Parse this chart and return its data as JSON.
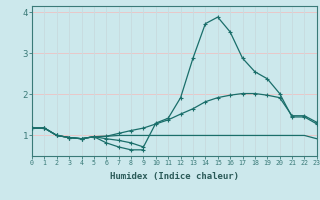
{
  "xlabel": "Humidex (Indice chaleur)",
  "bg_color": "#cce8ec",
  "grid_color_h": "#e8c8c8",
  "grid_color_v": "#c8dce0",
  "line_color": "#1a6e6a",
  "xmin": 0,
  "xmax": 23,
  "ymin": 0.5,
  "ymax": 4.15,
  "yticks": [
    1,
    2,
    3,
    4
  ],
  "xticks": [
    0,
    1,
    2,
    3,
    4,
    5,
    6,
    7,
    8,
    9,
    10,
    11,
    12,
    13,
    14,
    15,
    16,
    17,
    18,
    19,
    20,
    21,
    22,
    23
  ],
  "line_peak_x": [
    0,
    1,
    2,
    3,
    4,
    5,
    6,
    7,
    8,
    9,
    10,
    11,
    12,
    13,
    14,
    15,
    16,
    17,
    18,
    19,
    20,
    21,
    22,
    23
  ],
  "line_peak_y": [
    1.18,
    1.18,
    1.0,
    0.95,
    0.92,
    0.97,
    0.92,
    0.88,
    0.82,
    0.72,
    1.3,
    1.42,
    1.92,
    2.88,
    3.72,
    3.88,
    3.52,
    2.88,
    2.55,
    2.38,
    2.02,
    1.45,
    1.45,
    1.28
  ],
  "line_mid_x": [
    0,
    1,
    2,
    3,
    4,
    5,
    6,
    7,
    8,
    9,
    10,
    11,
    12,
    13,
    14,
    15,
    16,
    17,
    18,
    19,
    20,
    21,
    22,
    23
  ],
  "line_mid_y": [
    1.18,
    1.18,
    1.0,
    0.95,
    0.92,
    0.97,
    0.98,
    1.05,
    1.12,
    1.18,
    1.28,
    1.38,
    1.52,
    1.65,
    1.82,
    1.92,
    1.98,
    2.02,
    2.02,
    1.98,
    1.92,
    1.48,
    1.48,
    1.32
  ],
  "line_low_x": [
    0,
    1,
    2,
    3,
    4,
    5,
    6,
    7,
    8,
    9
  ],
  "line_low_y": [
    1.18,
    1.18,
    1.0,
    0.95,
    0.92,
    0.97,
    0.82,
    0.72,
    0.65,
    0.65
  ],
  "line_flat_x": [
    0,
    1,
    2,
    3,
    4,
    5,
    6,
    7,
    8,
    9,
    10,
    11,
    12,
    13,
    14,
    15,
    16,
    17,
    18,
    19,
    20,
    21,
    22,
    23
  ],
  "line_flat_y": [
    1.18,
    1.18,
    1.0,
    0.95,
    0.92,
    0.97,
    0.98,
    1.0,
    1.0,
    1.0,
    1.0,
    1.0,
    1.0,
    1.0,
    1.0,
    1.0,
    1.0,
    1.0,
    1.0,
    1.0,
    1.0,
    1.0,
    1.0,
    0.92
  ]
}
